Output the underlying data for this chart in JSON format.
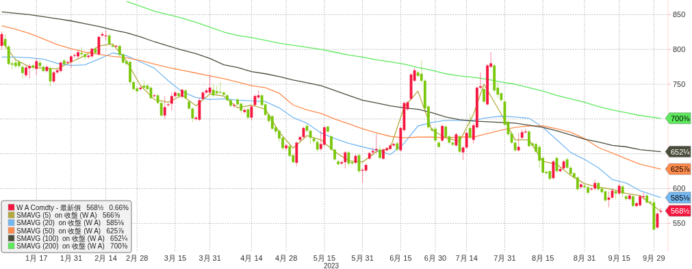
{
  "chart_data": {
    "type": "candlestick",
    "xlabel": "2023",
    "categories": [
      null,
      null,
      null,
      null,
      null,
      null,
      null,
      null,
      null,
      null,
      "1月 17",
      null,
      null,
      null,
      null,
      null,
      null,
      null,
      null,
      null,
      "1月 31",
      null,
      null,
      null,
      null,
      null,
      null,
      null,
      null,
      null,
      "2月 14",
      null,
      null,
      null,
      null,
      null,
      null,
      null,
      null,
      "2月 28",
      null,
      null,
      null,
      null,
      null,
      null,
      null,
      null,
      null,
      null,
      "3月 15",
      null,
      null,
      null,
      null,
      null,
      null,
      null,
      null,
      null,
      "3月 31",
      null,
      null,
      null,
      null,
      null,
      null,
      null,
      null,
      null,
      null,
      null,
      "4月 14",
      null,
      null,
      null,
      null,
      null,
      null,
      null,
      null,
      null,
      "4月 28",
      null,
      null,
      null,
      null,
      null,
      null,
      null,
      null,
      null,
      null,
      "5月 15",
      null,
      null,
      null,
      null,
      null,
      null,
      null,
      null,
      null,
      null,
      "5月 31",
      null,
      null,
      null,
      null,
      null,
      null,
      null,
      null,
      null,
      null,
      "6月 15",
      null,
      null,
      null,
      null,
      null,
      null,
      null,
      null,
      null,
      "6月 30",
      null,
      null,
      null,
      null,
      null,
      null,
      null,
      null,
      "7月 14",
      null,
      null,
      null,
      null,
      null,
      null,
      null,
      null,
      null,
      null,
      "7月 31",
      null,
      null,
      null,
      null,
      null,
      null,
      null,
      null,
      null,
      null,
      "8月 15",
      null,
      null,
      null,
      null,
      null,
      null,
      null,
      null,
      null,
      null,
      null,
      "8月 31",
      null,
      null,
      null,
      null,
      null,
      null,
      null,
      null,
      null,
      "9月 15",
      null,
      null,
      null,
      null,
      null,
      null,
      null,
      null,
      null,
      "9月 29",
      null,
      null
    ],
    "ylim": [
      509,
      871
    ],
    "yticks": [
      550,
      600,
      {
        "value": 650,
        "label": null
      },
      {
        "value": 700,
        "label": null
      },
      750,
      800,
      850
    ],
    "grid": true,
    "legend": "bottom left",
    "colors": [
      "#f5163f",
      "#7ac70c"
    ],
    "series": [
      {
        "name": "W A Comdty - 最新價   568½   0.66%",
        "ohlc": [
          [
            805,
            826,
            800,
            822
          ],
          [
            815,
            822,
            800,
            805
          ],
          [
            804,
            807,
            777,
            779
          ],
          [
            780,
            783,
            771,
            778
          ],
          [
            781,
            787,
            773,
            776
          ],
          [
            782,
            784,
            773,
            776
          ],
          [
            775,
            777,
            758,
            766
          ],
          [
            763,
            777,
            760,
            774
          ],
          [
            773,
            779,
            758,
            776
          ],
          [
            777,
            779,
            770,
            774
          ],
          [
            772,
            787,
            763,
            783
          ],
          [
            781,
            785,
            773,
            776
          ],
          [
            775,
            777,
            767,
            769
          ],
          [
            769,
            777,
            767,
            775
          ],
          [
            773,
            775,
            747,
            754
          ],
          [
            754,
            769,
            752,
            767
          ],
          [
            767,
            772,
            765,
            770
          ],
          [
            769,
            783,
            767,
            781
          ],
          [
            784,
            786,
            776,
            779
          ],
          [
            781,
            784,
            779,
            782
          ],
          [
            782,
            791,
            773,
            790
          ],
          [
            791,
            794,
            788,
            792
          ],
          [
            790,
            798,
            786,
            796
          ],
          [
            795,
            803,
            788,
            793
          ],
          [
            793,
            795,
            785,
            789
          ],
          [
            789,
            793,
            787,
            791
          ],
          [
            790,
            802,
            788,
            801
          ],
          [
            801,
            803,
            793,
            795
          ],
          [
            793,
            820,
            791,
            818
          ],
          [
            820,
            825,
            818,
            822
          ],
          [
            819,
            828,
            813,
            820
          ],
          [
            820,
            822,
            806,
            808
          ],
          [
            806,
            808,
            802,
            804
          ],
          [
            804,
            807,
            803,
            805
          ],
          [
            805,
            807,
            790,
            792
          ],
          [
            793,
            795,
            779,
            781
          ],
          [
            783,
            785,
            777,
            779
          ],
          [
            782,
            784,
            750,
            753
          ],
          [
            753,
            755,
            740,
            743
          ],
          [
            744,
            747,
            738,
            740
          ],
          [
            743,
            747,
            741,
            745
          ],
          [
            748,
            755,
            743,
            745
          ],
          [
            748,
            750,
            741,
            743
          ],
          [
            745,
            747,
            728,
            730
          ],
          [
            733,
            736,
            731,
            734
          ],
          [
            734,
            736,
            721,
            723
          ],
          [
            723,
            725,
            703,
            705
          ],
          [
            705,
            733,
            700,
            717
          ],
          [
            720,
            723,
            718,
            721
          ],
          [
            722,
            738,
            712,
            733
          ],
          [
            733,
            740,
            731,
            738
          ],
          [
            737,
            739,
            731,
            733
          ],
          [
            732,
            743,
            730,
            742
          ],
          [
            741,
            743,
            728,
            730
          ],
          [
            725,
            727,
            713,
            715
          ],
          [
            715,
            717,
            695,
            701
          ],
          [
            700,
            704,
            698,
            702
          ],
          [
            699,
            730,
            697,
            727
          ],
          [
            729,
            740,
            727,
            738
          ],
          [
            738,
            744,
            736,
            741
          ],
          [
            738,
            763,
            736,
            745
          ],
          [
            742,
            750,
            731,
            734
          ],
          [
            740,
            748,
            735,
            737
          ],
          [
            739,
            753,
            736,
            738
          ],
          [
            738,
            740,
            733,
            735
          ],
          [
            734,
            736,
            725,
            727
          ],
          [
            727,
            729,
            717,
            719
          ],
          [
            719,
            722,
            716,
            720
          ],
          [
            728,
            730,
            718,
            721
          ],
          [
            722,
            724,
            708,
            712
          ],
          [
            710,
            715,
            708,
            713
          ],
          [
            714,
            716,
            700,
            702
          ],
          [
            702,
            720,
            698,
            718
          ],
          [
            720,
            735,
            718,
            733
          ],
          [
            731,
            741,
            729,
            734
          ],
          [
            734,
            736,
            718,
            720
          ],
          [
            721,
            723,
            704,
            706
          ],
          [
            706,
            708,
            695,
            697
          ],
          [
            704,
            706,
            684,
            686
          ],
          [
            688,
            690,
            678,
            682
          ],
          [
            683,
            685,
            667,
            672
          ],
          [
            673,
            675,
            655,
            658
          ],
          [
            658,
            664,
            655,
            662
          ],
          [
            661,
            663,
            645,
            647
          ],
          [
            648,
            650,
            636,
            638
          ],
          [
            637,
            668,
            632,
            666
          ],
          [
            670,
            676,
            668,
            674
          ],
          [
            674,
            689,
            672,
            687
          ],
          [
            690,
            693,
            681,
            683
          ],
          [
            683,
            685,
            664,
            673
          ],
          [
            672,
            674,
            665,
            668
          ],
          [
            667,
            669,
            653,
            656
          ],
          [
            657,
            683,
            654,
            664
          ],
          [
            663,
            690,
            661,
            688
          ],
          [
            689,
            691,
            679,
            682
          ],
          [
            675,
            677,
            654,
            656
          ],
          [
            656,
            658,
            640,
            642
          ],
          [
            639,
            641,
            633,
            635
          ],
          [
            636,
            640,
            634,
            638
          ],
          [
            638,
            654,
            629,
            652
          ],
          [
            652,
            654,
            632,
            636
          ],
          [
            638,
            640,
            634,
            636
          ],
          [
            637,
            649,
            635,
            647
          ],
          [
            648,
            650,
            622,
            625
          ],
          [
            627,
            629,
            608,
            627
          ],
          [
            626,
            636,
            624,
            634
          ],
          [
            643,
            653,
            641,
            651
          ],
          [
            652,
            659,
            648,
            654
          ],
          [
            655,
            678,
            651,
            657
          ],
          [
            656,
            662,
            642,
            644
          ],
          [
            643,
            658,
            641,
            656
          ],
          [
            655,
            660,
            653,
            658
          ],
          [
            657,
            664,
            655,
            662
          ],
          [
            662,
            666,
            660,
            664
          ],
          [
            665,
            667,
            654,
            656
          ],
          [
            655,
            689,
            653,
            687
          ],
          [
            684,
            725,
            682,
            723
          ],
          [
            714,
            726,
            712,
            724
          ],
          [
            729,
            766,
            727,
            764
          ],
          [
            755,
            774,
            753,
            770
          ],
          [
            767,
            770,
            760,
            762
          ],
          [
            765,
            784,
            752,
            755
          ],
          [
            755,
            757,
            713,
            715
          ],
          [
            718,
            720,
            686,
            688
          ],
          [
            686,
            688,
            682,
            684
          ],
          [
            686,
            688,
            667,
            669
          ],
          [
            666,
            668,
            658,
            660
          ],
          [
            669,
            692,
            667,
            690
          ],
          [
            689,
            691,
            672,
            674
          ],
          [
            675,
            677,
            664,
            666
          ],
          [
            666,
            668,
            661,
            663
          ],
          [
            662,
            680,
            660,
            678
          ],
          [
            675,
            677,
            651,
            653
          ],
          [
            652,
            661,
            641,
            659
          ],
          [
            659,
            682,
            657,
            680
          ],
          [
            687,
            707,
            671,
            673
          ],
          [
            670,
            694,
            665,
            691
          ],
          [
            688,
            747,
            686,
            745
          ],
          [
            745,
            767,
            743,
            747
          ],
          [
            743,
            745,
            722,
            725
          ],
          [
            721,
            779,
            719,
            777
          ],
          [
            775,
            796,
            773,
            780
          ],
          [
            777,
            779,
            739,
            741
          ],
          [
            745,
            752,
            730,
            735
          ],
          [
            737,
            739,
            725,
            727
          ],
          [
            725,
            727,
            690,
            692
          ],
          [
            696,
            698,
            676,
            678
          ],
          [
            679,
            681,
            664,
            666
          ],
          [
            666,
            668,
            653,
            655
          ],
          [
            655,
            680,
            653,
            660
          ],
          [
            673,
            685,
            671,
            681
          ],
          [
            681,
            686,
            679,
            682
          ],
          [
            682,
            684,
            659,
            661
          ],
          [
            665,
            667,
            660,
            662
          ],
          [
            664,
            666,
            651,
            653
          ],
          [
            660,
            662,
            630,
            640
          ],
          [
            644,
            646,
            621,
            623
          ],
          [
            624,
            626,
            620,
            622
          ],
          [
            625,
            627,
            612,
            614
          ],
          [
            615,
            641,
            613,
            639
          ],
          [
            644,
            646,
            623,
            625
          ],
          [
            625,
            631,
            623,
            628
          ],
          [
            629,
            641,
            627,
            639
          ],
          [
            642,
            644,
            628,
            630
          ],
          [
            630,
            632,
            619,
            621
          ],
          [
            622,
            624,
            614,
            616
          ],
          [
            616,
            618,
            597,
            599
          ],
          [
            602,
            608,
            600,
            606
          ],
          [
            604,
            606,
            600,
            602
          ],
          [
            602,
            604,
            592,
            594
          ],
          [
            599,
            602,
            597,
            600
          ],
          [
            600,
            613,
            598,
            608
          ],
          [
            608,
            610,
            597,
            599
          ],
          [
            600,
            602,
            593,
            595
          ],
          [
            596,
            598,
            581,
            583
          ],
          [
            584,
            596,
            573,
            587
          ],
          [
            587,
            600,
            585,
            597
          ],
          [
            596,
            598,
            585,
            593
          ],
          [
            593,
            607,
            591,
            604
          ],
          [
            603,
            605,
            588,
            593
          ],
          [
            589,
            591,
            583,
            585
          ],
          [
            585,
            592,
            583,
            590
          ],
          [
            589,
            591,
            573,
            575
          ],
          [
            575,
            581,
            573,
            579
          ],
          [
            576,
            591,
            574,
            589
          ],
          [
            589,
            594,
            584,
            589
          ],
          [
            590,
            592,
            578,
            580
          ],
          [
            581,
            583,
            577,
            580
          ],
          [
            580,
            585,
            540,
            541
          ],
          [
            544,
            567,
            542,
            564
          ],
          [
            567,
            572,
            564,
            568
          ]
        ]
      },
      {
        "type": "line",
        "name": "SMAVG (5)  on 收盤 (W A)   566⅝",
        "color": "#b3a93c",
        "values": [
          812,
          null,
          null,
          null,
          785,
          null,
          null,
          null,
          775,
          null,
          null,
          null,
          773,
          null,
          null,
          null,
          772,
          null,
          null,
          null,
          782,
          null,
          null,
          null,
          791,
          null,
          null,
          null,
          805,
          null,
          null,
          null,
          808,
          null,
          null,
          null,
          783,
          null,
          null,
          null,
          748,
          null,
          null,
          null,
          728,
          null,
          null,
          null,
          724,
          null,
          null,
          null,
          734,
          null,
          null,
          null,
          719,
          null,
          null,
          null,
          736,
          null,
          null,
          null,
          733,
          null,
          null,
          null,
          716,
          null,
          null,
          null,
          720,
          null,
          null,
          null,
          714,
          null,
          null,
          null,
          681,
          null,
          null,
          null,
          658,
          null,
          null,
          null,
          676,
          null,
          null,
          null,
          670,
          null,
          null,
          null,
          653,
          null,
          null,
          null,
          640,
          null,
          null,
          null,
          638,
          null,
          null,
          null,
          653,
          null,
          null,
          null,
          658,
          null,
          null,
          null,
          717,
          null,
          null,
          null,
          740,
          null,
          null,
          null,
          684,
          null,
          null,
          null,
          673,
          null,
          null,
          null,
          668,
          null,
          null,
          null,
          707,
          null,
          null,
          750,
          null,
          null,
          null,
          null,
          707,
          null,
          null,
          null,
          670,
          null,
          null,
          null,
          670,
          null,
          null,
          null,
          639,
          null,
          null,
          null,
          635,
          null,
          null,
          null,
          619,
          null,
          null,
          null,
          607,
          null,
          null,
          null,
          602,
          null,
          null,
          null,
          599,
          null,
          null,
          null,
          593,
          null,
          null,
          null,
          590,
          null,
          null,
          null,
          null,
          null,
          567
        ]
      },
      {
        "type": "line",
        "name": "SMAVG (20)  on 收盤 (W A)   585⅛",
        "color": "#74b8f2",
        "values": [
          789,
          null,
          null,
          null,
          789,
          null,
          null,
          null,
          788,
          null,
          null,
          null,
          786,
          null,
          null,
          null,
          780,
          null,
          null,
          null,
          777,
          null,
          null,
          null,
          778,
          null,
          null,
          null,
          786,
          null,
          null,
          null,
          795,
          null,
          null,
          null,
          791,
          null,
          null,
          null,
          782,
          null,
          null,
          null,
          773,
          null,
          null,
          null,
          755,
          null,
          null,
          null,
          739,
          null,
          null,
          null,
          731,
          null,
          null,
          null,
          728,
          null,
          null,
          null,
          729,
          null,
          null,
          null,
          727,
          null,
          null,
          null,
          726,
          null,
          null,
          null,
          725,
          null,
          null,
          null,
          716,
          null,
          null,
          null,
          702,
          null,
          null,
          null,
          694,
          null,
          null,
          null,
          680,
          null,
          null,
          null,
          672,
          null,
          null,
          null,
          665,
          null,
          null,
          null,
          660,
          null,
          null,
          null,
          655,
          null,
          null,
          null,
          649,
          null,
          null,
          null,
          665,
          null,
          null,
          null,
          690,
          null,
          null,
          null,
          695,
          null,
          null,
          null,
          698,
          null,
          null,
          null,
          698,
          null,
          null,
          null,
          698,
          null,
          null,
          null,
          702,
          null,
          null,
          null,
          704,
          null,
          null,
          null,
          703,
          null,
          null,
          null,
          701,
          null,
          null,
          null,
          688,
          null,
          null,
          null,
          670,
          null,
          null,
          null,
          652,
          null,
          null,
          null,
          642,
          null,
          null,
          null,
          630,
          null,
          null,
          null,
          613,
          null,
          null,
          null,
          608,
          null,
          null,
          null,
          597,
          null,
          null,
          null,
          null,
          null,
          587
        ]
      },
      {
        "type": "line",
        "name": "SMAVG (50)  on 收盤 (W A)   625⅞",
        "color": "#ff8a4c",
        "values": [
          834,
          null,
          null,
          null,
          829,
          null,
          null,
          null,
          823,
          null,
          null,
          null,
          815,
          null,
          null,
          null,
          807,
          null,
          null,
          null,
          801,
          null,
          null,
          null,
          796,
          null,
          null,
          null,
          793,
          null,
          null,
          null,
          790,
          null,
          null,
          null,
          788,
          null,
          null,
          null,
          784,
          null,
          null,
          null,
          779,
          null,
          null,
          null,
          774,
          null,
          null,
          null,
          770,
          null,
          null,
          null,
          766,
          null,
          null,
          null,
          762,
          null,
          null,
          null,
          758,
          null,
          null,
          null,
          753,
          null,
          null,
          null,
          748,
          null,
          null,
          null,
          745,
          null,
          null,
          null,
          737,
          null,
          null,
          null,
          720,
          null,
          null,
          null,
          713,
          null,
          null,
          null,
          708,
          null,
          null,
          null,
          700,
          null,
          null,
          null,
          693,
          null,
          null,
          null,
          686,
          null,
          null,
          null,
          680,
          null,
          null,
          null,
          675,
          null,
          null,
          null,
          673,
          null,
          null,
          null,
          674,
          null,
          null,
          null,
          674,
          null,
          null,
          null,
          673,
          null,
          null,
          null,
          674,
          null,
          null,
          null,
          674,
          null,
          null,
          null,
          679,
          null,
          null,
          null,
          684,
          null,
          null,
          null,
          688,
          null,
          null,
          null,
          690,
          null,
          null,
          null,
          690,
          null,
          null,
          null,
          686,
          null,
          null,
          null,
          681,
          null,
          null,
          null,
          672,
          null,
          null,
          null,
          659,
          null,
          null,
          null,
          651,
          null,
          null,
          null,
          643,
          null,
          null,
          null,
          635,
          null,
          null,
          null,
          null,
          null,
          628
        ]
      },
      {
        "type": "line",
        "name": "SMAVG (100)  on 收盤 (W A)   652¼",
        "color": "#4a4d3c",
        "values": [
          854,
          null,
          null,
          null,
          852,
          null,
          null,
          null,
          850,
          null,
          null,
          null,
          847,
          null,
          null,
          null,
          844,
          null,
          null,
          null,
          841,
          null,
          null,
          null,
          837,
          null,
          null,
          null,
          833,
          null,
          null,
          null,
          828,
          null,
          null,
          null,
          824,
          null,
          null,
          null,
          818,
          null,
          null,
          null,
          811,
          null,
          null,
          null,
          805,
          null,
          null,
          null,
          799,
          null,
          null,
          null,
          794,
          null,
          null,
          null,
          787,
          null,
          null,
          null,
          778,
          null,
          null,
          null,
          774,
          null,
          null,
          null,
          768,
          null,
          null,
          null,
          765,
          null,
          null,
          null,
          761,
          null,
          null,
          null,
          756,
          null,
          null,
          null,
          752,
          null,
          null,
          null,
          748,
          null,
          null,
          null,
          741,
          null,
          null,
          null,
          734,
          null,
          null,
          null,
          727,
          null,
          null,
          null,
          723,
          null,
          null,
          null,
          719,
          null,
          null,
          null,
          716,
          null,
          null,
          null,
          714,
          null,
          null,
          null,
          709,
          null,
          null,
          null,
          703,
          null,
          null,
          null,
          699,
          null,
          null,
          null,
          697,
          null,
          null,
          null,
          696,
          null,
          null,
          null,
          695,
          null,
          null,
          null,
          694,
          null,
          null,
          null,
          691,
          null,
          null,
          null,
          688,
          null,
          null,
          null,
          683,
          null,
          null,
          null,
          677,
          null,
          null,
          null,
          671,
          null,
          null,
          null,
          667,
          null,
          null,
          null,
          662,
          null,
          null,
          null,
          660,
          null,
          null,
          null,
          656,
          null,
          null,
          null,
          null,
          null,
          653
        ]
      },
      {
        "type": "line",
        "name": "SMAVG (200)  on 收盤 (W A)   700⅜",
        "color": "#5cea5c",
        "values": [
          null,
          null,
          null,
          null,
          null,
          null,
          null,
          null,
          null,
          null,
          null,
          null,
          null,
          null,
          null,
          null,
          null,
          null,
          null,
          null,
          null,
          null,
          null,
          null,
          null,
          null,
          null,
          null,
          null,
          null,
          null,
          null,
          null,
          null,
          null,
          null,
          869,
          null,
          null,
          null,
          862,
          null,
          null,
          null,
          855,
          null,
          null,
          null,
          850,
          null,
          null,
          null,
          845,
          null,
          null,
          null,
          839,
          null,
          null,
          null,
          832,
          null,
          null,
          null,
          825,
          null,
          null,
          null,
          820,
          null,
          null,
          null,
          817,
          null,
          null,
          null,
          813,
          null,
          null,
          null,
          809,
          null,
          null,
          null,
          806,
          null,
          null,
          null,
          803,
          null,
          null,
          null,
          800,
          null,
          null,
          null,
          796,
          null,
          null,
          null,
          792,
          null,
          null,
          null,
          789,
          null,
          null,
          null,
          785,
          null,
          null,
          null,
          782,
          null,
          null,
          null,
          779,
          null,
          null,
          null,
          774,
          null,
          null,
          null,
          770,
          null,
          null,
          null,
          765,
          null,
          null,
          null,
          762,
          null,
          null,
          null,
          760,
          null,
          null,
          null,
          757,
          null,
          null,
          null,
          753,
          null,
          null,
          null,
          750,
          null,
          null,
          null,
          745,
          null,
          null,
          null,
          740,
          null,
          null,
          null,
          734,
          null,
          null,
          null,
          729,
          null,
          null,
          null,
          724,
          null,
          null,
          null,
          718,
          null,
          null,
          null,
          713,
          null,
          null,
          null,
          709,
          null,
          null,
          null,
          705,
          null,
          null,
          null,
          null,
          null,
          701
        ]
      }
    ],
    "annotations": [
      "700⅜",
      "652¼",
      "625⅞",
      "585⅛",
      "568½"
    ]
  }
}
